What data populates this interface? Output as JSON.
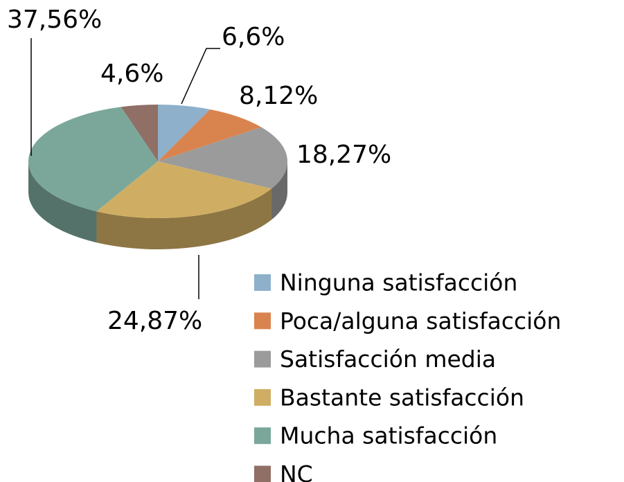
{
  "chart_data": {
    "type": "pie",
    "categories": [
      "Ninguna satisfacción",
      "Poca/alguna satisfacción",
      "Satisfacción media",
      "Bastante satisfacción",
      "Mucha satisfacción",
      "NC"
    ],
    "values": [
      6.6,
      8.12,
      18.27,
      24.87,
      37.56,
      4.6
    ],
    "value_labels": [
      "6,6%",
      "8,12%",
      "18,27%",
      "24,87%",
      "37,56%",
      "4,6%"
    ],
    "colors": [
      "#8eb0cb",
      "#d9844f",
      "#9b9b9b",
      "#cfae63",
      "#7ba79b",
      "#8f6f66"
    ],
    "legend": "bottom-right"
  }
}
